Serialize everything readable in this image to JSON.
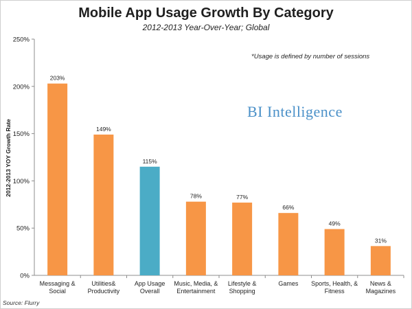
{
  "chart_data": {
    "type": "bar",
    "title": "Mobile App Usage Growth By Category",
    "subtitle": "2012-2013 Year-Over-Year; Global",
    "ylabel": "2012-2013 YOY Growth Rate",
    "xlabel": "",
    "ylim": [
      0,
      250
    ],
    "yticks": [
      0,
      50,
      100,
      150,
      200,
      250
    ],
    "ytick_labels": [
      "0%",
      "50%",
      "100%",
      "150%",
      "200%",
      "250%"
    ],
    "categories": [
      [
        "Messaging &",
        "Social"
      ],
      [
        "Utilities&",
        "Productivity"
      ],
      [
        "App Usage",
        "Overall"
      ],
      [
        "Music, Media, &",
        "Entertainment"
      ],
      [
        "Lifestyle &",
        "Shopping"
      ],
      [
        "Games"
      ],
      [
        "Sports, Health, &",
        "Fitness"
      ],
      [
        "News &",
        "Magazines"
      ]
    ],
    "values": [
      203,
      149,
      115,
      78,
      77,
      66,
      49,
      31
    ],
    "data_labels": [
      "203%",
      "149%",
      "115%",
      "78%",
      "77%",
      "66%",
      "49%",
      "31%"
    ],
    "highlight_index": 2,
    "colors": {
      "bar": "#f79646",
      "highlight": "#4bacc6",
      "axis": "#8c8c8c"
    },
    "grid": false,
    "note": "*Usage is defined by number of sessions",
    "brand": "BI Intelligence",
    "source": "Source: Flurry"
  }
}
